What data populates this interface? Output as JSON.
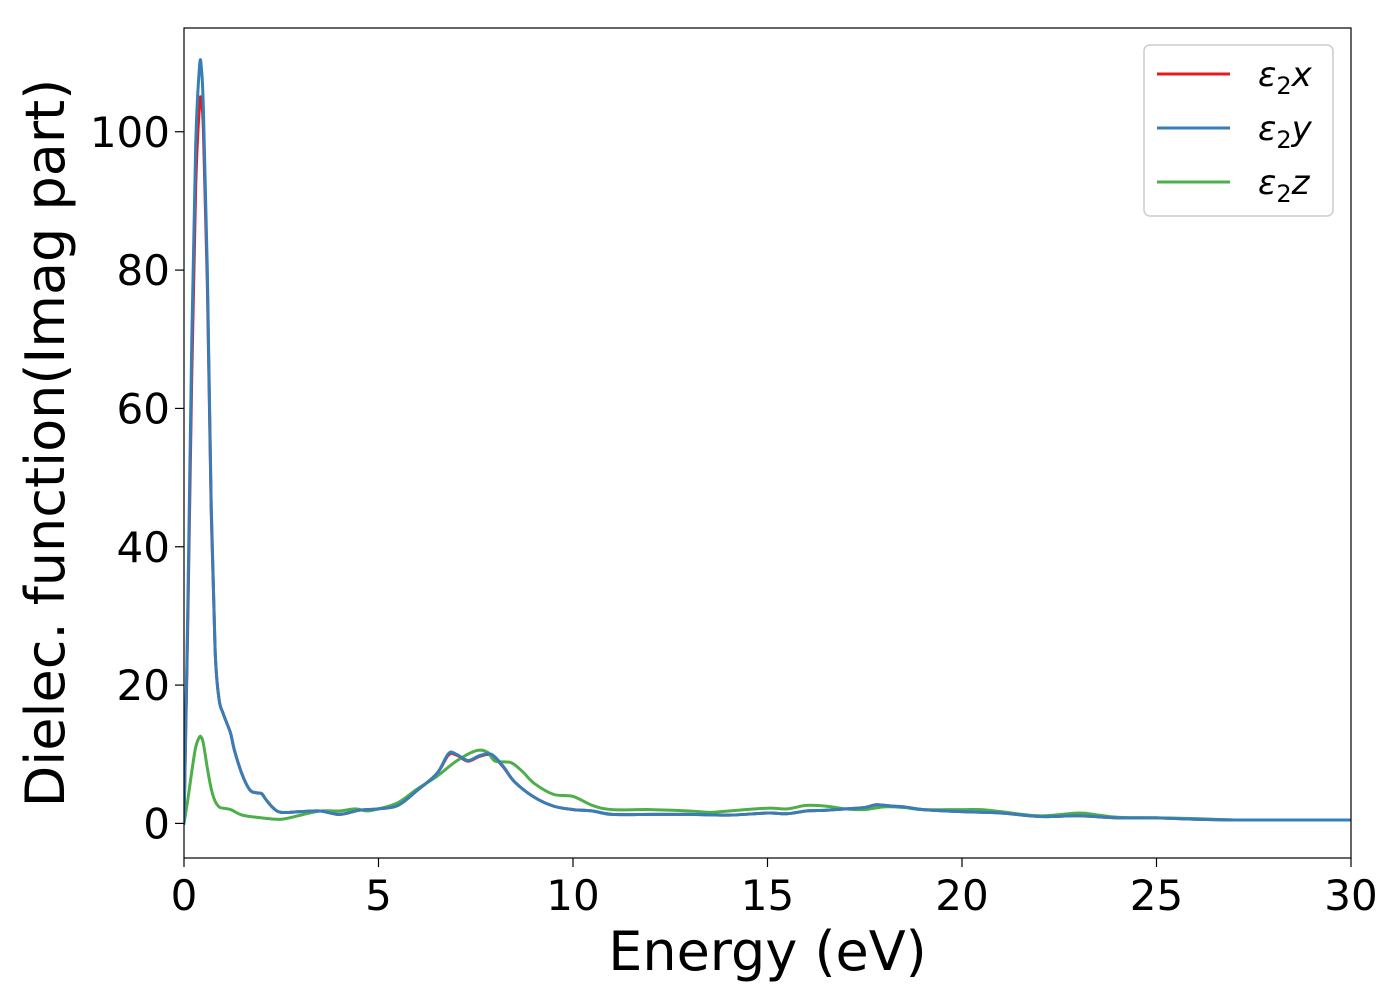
{
  "chart_data": {
    "type": "line",
    "xlabel": "Energy (eV)",
    "ylabel": "Dielec. function(Imag part)",
    "xlim": [
      0,
      30
    ],
    "ylim": [
      -5,
      115
    ],
    "xticks": [
      0,
      5,
      10,
      15,
      20,
      25,
      30
    ],
    "yticks": [
      0,
      20,
      40,
      60,
      80,
      100
    ],
    "grid": false,
    "legend_position": "top-right",
    "series": [
      {
        "name": "ε2x",
        "legend_base": "ε",
        "legend_sub": "2",
        "legend_suffix": "x",
        "color": "#e41a1c",
        "x": [
          0,
          0.1,
          0.2,
          0.3,
          0.4,
          0.45,
          0.5,
          0.6,
          0.7,
          0.8,
          0.9,
          1.0,
          1.1,
          1.2,
          1.3,
          1.5,
          1.7,
          1.9,
          2.0,
          2.1,
          2.3,
          2.5,
          3.0,
          3.5,
          4.0,
          4.5,
          5.0,
          5.5,
          6.0,
          6.5,
          6.8,
          7.0,
          7.3,
          7.6,
          7.9,
          8.2,
          8.5,
          9.0,
          9.5,
          10.0,
          10.5,
          11.0,
          12.0,
          13.0,
          14.0,
          15.0,
          15.5,
          16.0,
          16.5,
          17.0,
          17.5,
          17.8,
          18.2,
          18.5,
          19.0,
          20.0,
          21.0,
          22.0,
          23.0,
          24.0,
          25.0,
          26.0,
          27.0,
          28.0,
          29.0,
          30.0
        ],
        "y": [
          0,
          30,
          65,
          92,
          104,
          104,
          100,
          78,
          45,
          25,
          18,
          16,
          14.5,
          13,
          10.5,
          7,
          4.8,
          4.4,
          4.3,
          3.5,
          2.2,
          1.6,
          1.7,
          1.8,
          1.3,
          1.9,
          2.1,
          2.6,
          4.8,
          7.2,
          9.9,
          9.9,
          9.0,
          9.7,
          9.9,
          8.2,
          6.0,
          3.8,
          2.5,
          2.0,
          1.8,
          1.3,
          1.3,
          1.3,
          1.2,
          1.5,
          1.4,
          1.8,
          1.9,
          2.1,
          2.3,
          2.7,
          2.5,
          2.4,
          2.0,
          1.7,
          1.5,
          1.0,
          1.1,
          0.8,
          0.8,
          0.6,
          0.5,
          0.5,
          0.5,
          0.5
        ]
      },
      {
        "name": "ε2y",
        "legend_base": "ε",
        "legend_sub": "2",
        "legend_suffix": "y",
        "color": "#377eb8",
        "x": [
          0,
          0.1,
          0.2,
          0.3,
          0.4,
          0.45,
          0.5,
          0.6,
          0.7,
          0.8,
          0.9,
          1.0,
          1.1,
          1.2,
          1.3,
          1.5,
          1.7,
          1.9,
          2.0,
          2.1,
          2.3,
          2.5,
          3.0,
          3.5,
          4.0,
          4.5,
          5.0,
          5.5,
          6.0,
          6.5,
          6.8,
          7.0,
          7.3,
          7.6,
          7.9,
          8.2,
          8.5,
          9.0,
          9.5,
          10.0,
          10.5,
          11.0,
          12.0,
          13.0,
          14.0,
          15.0,
          15.5,
          16.0,
          16.5,
          17.0,
          17.5,
          17.8,
          18.2,
          18.5,
          19.0,
          20.0,
          21.0,
          22.0,
          23.0,
          24.0,
          25.0,
          26.0,
          27.0,
          28.0,
          29.0,
          30.0
        ],
        "y": [
          0,
          32,
          70,
          98,
          109.5,
          109,
          103,
          80,
          46,
          25,
          18,
          16,
          14.5,
          13,
          10.5,
          7,
          4.8,
          4.4,
          4.3,
          3.5,
          2.2,
          1.6,
          1.7,
          1.8,
          1.3,
          1.9,
          2.1,
          2.6,
          4.8,
          7.2,
          10.1,
          10.0,
          9.1,
          9.8,
          10.0,
          8.3,
          6.0,
          3.8,
          2.5,
          2.0,
          1.8,
          1.3,
          1.3,
          1.3,
          1.2,
          1.5,
          1.4,
          1.8,
          1.9,
          2.1,
          2.3,
          2.7,
          2.5,
          2.4,
          2.0,
          1.7,
          1.5,
          1.0,
          1.1,
          0.8,
          0.8,
          0.6,
          0.5,
          0.5,
          0.5,
          0.5
        ]
      },
      {
        "name": "ε2z",
        "legend_base": "ε",
        "legend_sub": "2",
        "legend_suffix": "z",
        "color": "#4daf4a",
        "x": [
          0,
          0.1,
          0.2,
          0.3,
          0.4,
          0.45,
          0.5,
          0.6,
          0.7,
          0.8,
          0.9,
          1.0,
          1.2,
          1.5,
          2.0,
          2.5,
          3.0,
          3.5,
          4.0,
          4.4,
          4.7,
          5.0,
          5.5,
          6.0,
          6.5,
          7.0,
          7.5,
          7.8,
          8.0,
          8.4,
          8.7,
          9.0,
          9.5,
          10.0,
          10.5,
          11.0,
          12.0,
          13.0,
          13.5,
          14.0,
          15.0,
          15.5,
          16.0,
          16.5,
          17.0,
          17.5,
          18.0,
          18.5,
          19.0,
          20.0,
          20.5,
          21.0,
          22.0,
          23.0,
          23.5,
          24.0,
          25.0,
          26.0,
          27.0,
          28.0,
          29.0,
          30.0
        ],
        "y": [
          0,
          3.5,
          7.5,
          11.0,
          12.5,
          12.4,
          11.5,
          8.0,
          5.0,
          3.2,
          2.4,
          2.2,
          2.0,
          1.2,
          0.8,
          0.6,
          1.2,
          1.8,
          1.8,
          2.1,
          1.8,
          2.1,
          3.0,
          5.0,
          6.8,
          9.0,
          10.5,
          10.3,
          9.0,
          8.8,
          7.5,
          5.8,
          4.2,
          3.9,
          2.6,
          2.0,
          2.0,
          1.8,
          1.6,
          1.8,
          2.2,
          2.1,
          2.6,
          2.5,
          2.1,
          2.0,
          2.4,
          2.3,
          2.0,
          2.0,
          2.0,
          1.7,
          1.1,
          1.5,
          1.2,
          0.9,
          0.8,
          0.7,
          0.5,
          0.5,
          0.5,
          0.5
        ]
      }
    ]
  }
}
